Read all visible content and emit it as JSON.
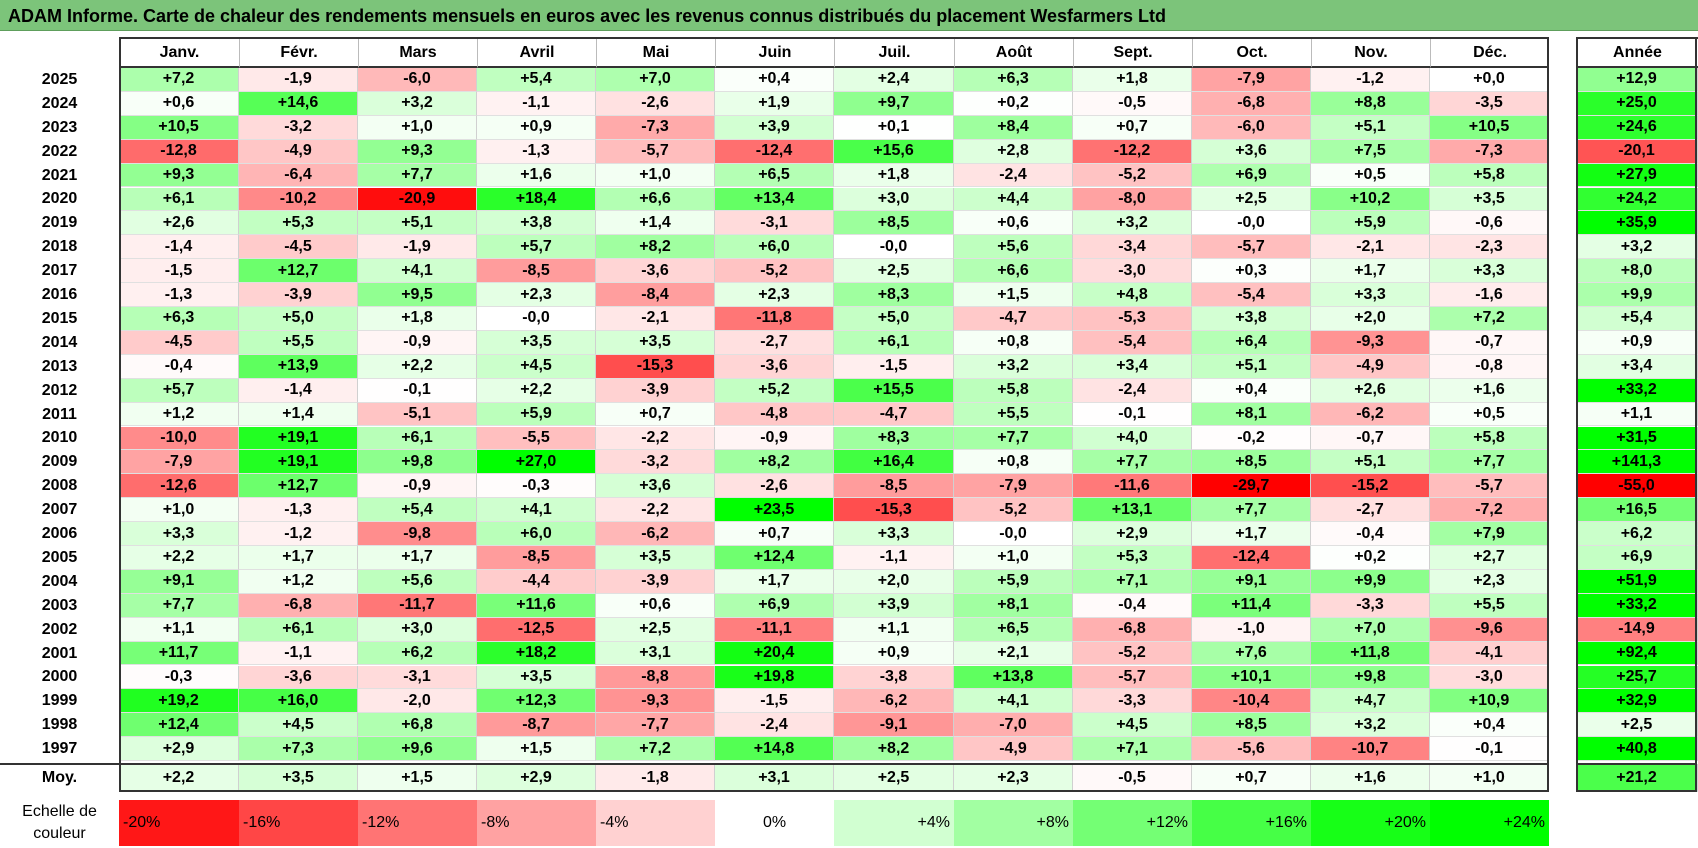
{
  "title": "ADAM Informe. Carte de chaleur des rendements mensuels en euros avec les revenus connus distribués du placement Wesfarmers Ltd",
  "colors": {
    "negative_max": "#ff0000",
    "zero": "#ffffff",
    "positive_max": "#00ff00",
    "title_bg": "#7cc47a"
  },
  "chart_data": {
    "type": "heatmap",
    "title": "ADAM Informe. Carte de chaleur des rendements mensuels en euros avec les revenus connus distribués du placement Wesfarmers Ltd",
    "months": [
      "Janv.",
      "Févr.",
      "Mars",
      "Avril",
      "Mai",
      "Juin",
      "Juil.",
      "Août",
      "Sept.",
      "Oct.",
      "Nov.",
      "Déc."
    ],
    "annual_label": "Année",
    "average_label": "Moy.",
    "rows": [
      {
        "year": "2025",
        "values": [
          "+7,2",
          "-1,9",
          "-6,0",
          "+5,4",
          "+7,0",
          "+0,4",
          "+2,4",
          "+6,3",
          "+1,8",
          "-7,9",
          "-1,2",
          "+0,0"
        ],
        "annual": "+12,9"
      },
      {
        "year": "2024",
        "values": [
          "+0,6",
          "+14,6",
          "+3,2",
          "-1,1",
          "-2,6",
          "+1,9",
          "+9,7",
          "+0,2",
          "-0,5",
          "-6,8",
          "+8,8",
          "-3,5"
        ],
        "annual": "+25,0"
      },
      {
        "year": "2023",
        "values": [
          "+10,5",
          "-3,2",
          "+1,0",
          "+0,9",
          "-7,3",
          "+3,9",
          "+0,1",
          "+8,4",
          "+0,7",
          "-6,0",
          "+5,1",
          "+10,5"
        ],
        "annual": "+24,6"
      },
      {
        "year": "2022",
        "values": [
          "-12,8",
          "-4,9",
          "+9,3",
          "-1,3",
          "-5,7",
          "-12,4",
          "+15,6",
          "+2,8",
          "-12,2",
          "+3,6",
          "+7,5",
          "-7,3"
        ],
        "annual": "-20,1"
      },
      {
        "year": "2021",
        "values": [
          "+9,3",
          "-6,4",
          "+7,7",
          "+1,6",
          "+1,0",
          "+6,5",
          "+1,8",
          "-2,4",
          "-5,2",
          "+6,9",
          "+0,5",
          "+5,8"
        ],
        "annual": "+27,9"
      },
      {
        "year": "2020",
        "values": [
          "+6,1",
          "-10,2",
          "-20,9",
          "+18,4",
          "+6,6",
          "+13,4",
          "+3,0",
          "+4,4",
          "-8,0",
          "+2,5",
          "+10,2",
          "+3,5"
        ],
        "annual": "+24,2"
      },
      {
        "year": "2019",
        "values": [
          "+2,6",
          "+5,3",
          "+5,1",
          "+3,8",
          "+1,4",
          "-3,1",
          "+8,5",
          "+0,6",
          "+3,2",
          "-0,0",
          "+5,9",
          "-0,6"
        ],
        "annual": "+35,9"
      },
      {
        "year": "2018",
        "values": [
          "-1,4",
          "-4,5",
          "-1,9",
          "+5,7",
          "+8,2",
          "+6,0",
          "-0,0",
          "+5,6",
          "-3,4",
          "-5,7",
          "-2,1",
          "-2,3"
        ],
        "annual": "+3,2"
      },
      {
        "year": "2017",
        "values": [
          "-1,5",
          "+12,7",
          "+4,1",
          "-8,5",
          "-3,6",
          "-5,2",
          "+2,5",
          "+6,6",
          "-3,0",
          "+0,3",
          "+1,7",
          "+3,3"
        ],
        "annual": "+8,0"
      },
      {
        "year": "2016",
        "values": [
          "-1,3",
          "-3,9",
          "+9,5",
          "+2,3",
          "-8,4",
          "+2,3",
          "+8,3",
          "+1,5",
          "+4,8",
          "-5,4",
          "+3,3",
          "-1,6"
        ],
        "annual": "+9,9"
      },
      {
        "year": "2015",
        "values": [
          "+6,3",
          "+5,0",
          "+1,8",
          "-0,0",
          "-2,1",
          "-11,8",
          "+5,0",
          "-4,7",
          "-5,3",
          "+3,8",
          "+2,0",
          "+7,2"
        ],
        "annual": "+5,4"
      },
      {
        "year": "2014",
        "values": [
          "-4,5",
          "+5,5",
          "-0,9",
          "+3,5",
          "+3,5",
          "-2,7",
          "+6,1",
          "+0,8",
          "-5,4",
          "+6,4",
          "-9,3",
          "-0,7"
        ],
        "annual": "+0,9"
      },
      {
        "year": "2013",
        "values": [
          "-0,4",
          "+13,9",
          "+2,2",
          "+4,5",
          "-15,3",
          "-3,6",
          "-1,5",
          "+3,2",
          "+3,4",
          "+5,1",
          "-4,9",
          "-0,8"
        ],
        "annual": "+3,4"
      },
      {
        "year": "2012",
        "values": [
          "+5,7",
          "-1,4",
          "-0,1",
          "+2,2",
          "-3,9",
          "+5,2",
          "+15,5",
          "+5,8",
          "-2,4",
          "+0,4",
          "+2,6",
          "+1,6"
        ],
        "annual": "+33,2"
      },
      {
        "year": "2011",
        "values": [
          "+1,2",
          "+1,4",
          "-5,1",
          "+5,9",
          "+0,7",
          "-4,8",
          "-4,7",
          "+5,5",
          "-0,1",
          "+8,1",
          "-6,2",
          "+0,5"
        ],
        "annual": "+1,1"
      },
      {
        "year": "2010",
        "values": [
          "-10,0",
          "+19,1",
          "+6,1",
          "-5,5",
          "-2,2",
          "-0,9",
          "+8,3",
          "+7,7",
          "+4,0",
          "-0,2",
          "-0,7",
          "+5,8"
        ],
        "annual": "+31,5"
      },
      {
        "year": "2009",
        "values": [
          "-7,9",
          "+19,1",
          "+9,8",
          "+27,0",
          "-3,2",
          "+8,2",
          "+16,4",
          "+0,8",
          "+7,7",
          "+8,5",
          "+5,1",
          "+7,7"
        ],
        "annual": "+141,3"
      },
      {
        "year": "2008",
        "values": [
          "-12,6",
          "+12,7",
          "-0,9",
          "-0,3",
          "+3,6",
          "-2,6",
          "-8,5",
          "-7,9",
          "-11,6",
          "-29,7",
          "-15,2",
          "-5,7"
        ],
        "annual": "-55,0"
      },
      {
        "year": "2007",
        "values": [
          "+1,0",
          "-1,3",
          "+5,4",
          "+4,1",
          "-2,2",
          "+23,5",
          "-15,3",
          "-5,2",
          "+13,1",
          "+7,7",
          "-2,7",
          "-7,2"
        ],
        "annual": "+16,5"
      },
      {
        "year": "2006",
        "values": [
          "+3,3",
          "-1,2",
          "-9,8",
          "+6,0",
          "-6,2",
          "+0,7",
          "+3,3",
          "-0,0",
          "+2,9",
          "+1,7",
          "-0,4",
          "+7,9"
        ],
        "annual": "+6,2"
      },
      {
        "year": "2005",
        "values": [
          "+2,2",
          "+1,7",
          "+1,7",
          "-8,5",
          "+3,5",
          "+12,4",
          "-1,1",
          "+1,0",
          "+5,3",
          "-12,4",
          "+0,2",
          "+2,7"
        ],
        "annual": "+6,9"
      },
      {
        "year": "2004",
        "values": [
          "+9,1",
          "+1,2",
          "+5,6",
          "-4,4",
          "-3,9",
          "+1,7",
          "+2,0",
          "+5,9",
          "+7,1",
          "+9,1",
          "+9,9",
          "+2,3"
        ],
        "annual": "+51,9"
      },
      {
        "year": "2003",
        "values": [
          "+7,7",
          "-6,8",
          "-11,7",
          "+11,6",
          "+0,6",
          "+6,9",
          "+3,9",
          "+8,1",
          "-0,4",
          "+11,4",
          "-3,3",
          "+5,5"
        ],
        "annual": "+33,2"
      },
      {
        "year": "2002",
        "values": [
          "+1,1",
          "+6,1",
          "+3,0",
          "-12,5",
          "+2,5",
          "-11,1",
          "+1,1",
          "+6,5",
          "-6,8",
          "-1,0",
          "+7,0",
          "-9,6"
        ],
        "annual": "-14,9"
      },
      {
        "year": "2001",
        "values": [
          "+11,7",
          "-1,1",
          "+6,2",
          "+18,2",
          "+3,1",
          "+20,4",
          "+0,9",
          "+2,1",
          "-5,2",
          "+7,6",
          "+11,8",
          "-4,1"
        ],
        "annual": "+92,4"
      },
      {
        "year": "2000",
        "values": [
          "-0,3",
          "-3,6",
          "-3,1",
          "+3,5",
          "-8,8",
          "+19,8",
          "-3,8",
          "+13,8",
          "-5,7",
          "+10,1",
          "+9,8",
          "-3,0"
        ],
        "annual": "+25,7"
      },
      {
        "year": "1999",
        "values": [
          "+19,2",
          "+16,0",
          "-2,0",
          "+12,3",
          "-9,3",
          "-1,5",
          "-6,2",
          "+4,1",
          "-3,3",
          "-10,4",
          "+4,7",
          "+10,9"
        ],
        "annual": "+32,9"
      },
      {
        "year": "1998",
        "values": [
          "+12,4",
          "+4,5",
          "+6,8",
          "-8,7",
          "-7,7",
          "-2,4",
          "-9,1",
          "-7,0",
          "+4,5",
          "+8,5",
          "+3,2",
          "+0,4"
        ],
        "annual": "+2,5"
      },
      {
        "year": "1997",
        "values": [
          "+2,9",
          "+7,3",
          "+9,6",
          "+1,5",
          "+7,2",
          "+14,8",
          "+8,2",
          "-4,9",
          "+7,1",
          "-5,6",
          "-10,7",
          "-0,1"
        ],
        "annual": "+40,8"
      }
    ],
    "average": {
      "values": [
        "+2,2",
        "+3,5",
        "+1,5",
        "+2,9",
        "-1,8",
        "+3,1",
        "+2,5",
        "+2,3",
        "-0,5",
        "+0,7",
        "+1,6",
        "+1,0"
      ],
      "annual": "+21,2"
    },
    "scale": {
      "label_line1": "Echelle de",
      "label_line2": "couleur",
      "steps": [
        "-20%",
        "-16%",
        "-12%",
        "-8%",
        "-4%",
        "0%",
        "+4%",
        "+8%",
        "+12%",
        "+16%",
        "+20%",
        "+24%"
      ]
    }
  }
}
